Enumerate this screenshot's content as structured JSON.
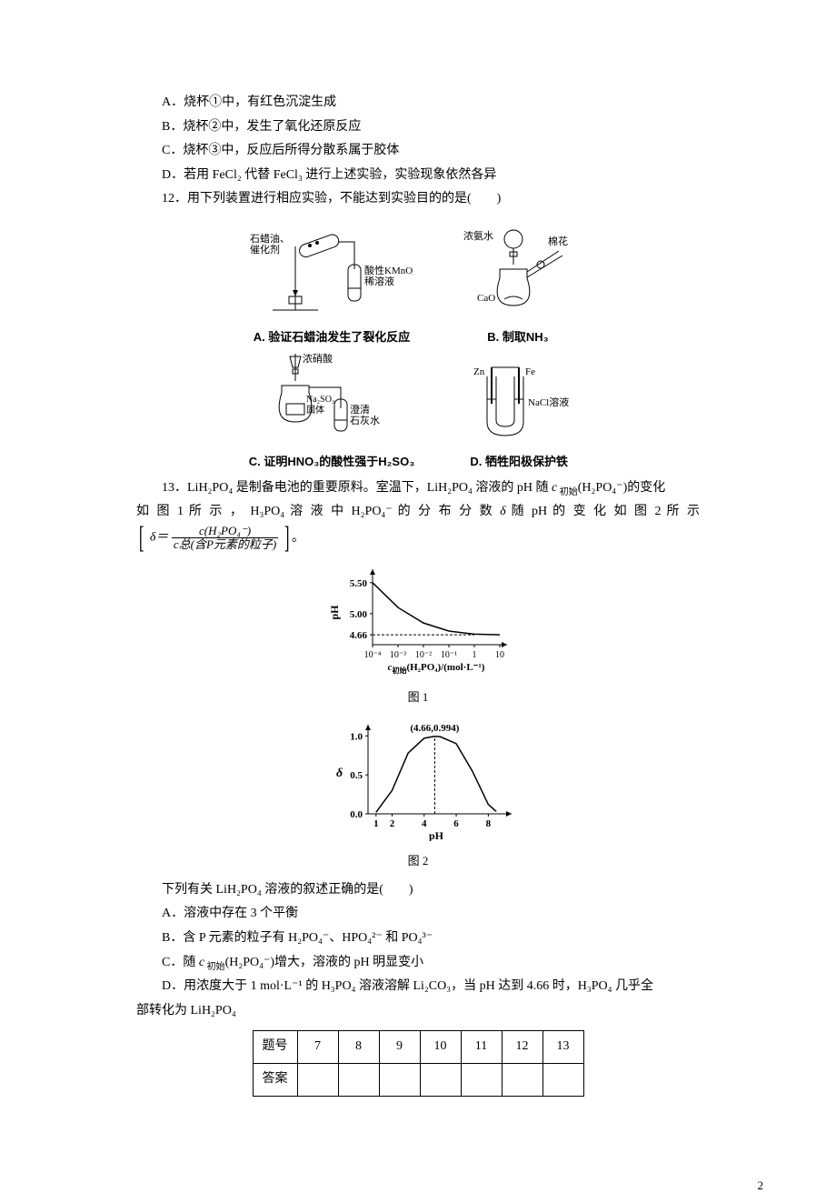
{
  "options_q11": {
    "A": "A．烧杯①中，有红色沉淀生成",
    "B": "B．烧杯②中，发生了氧化还原反应",
    "C": "C．烧杯③中，反应后所得分散系属于胶体",
    "D": "D．若用 FeCl₂ 代替 FeCl₃ 进行上述实验，实验现象依然各异"
  },
  "q12": {
    "stem": "12．用下列装置进行相应实验，不能达到实验目的的是(　　)",
    "devices": {
      "A": {
        "labels": [
          "石蜡油、",
          "催化剂",
          "酸性KMnO₄",
          "稀溶液"
        ],
        "caption": "A. 验证石蜡油发生了裂化反应"
      },
      "B": {
        "labels": [
          "浓氨水",
          "棉花",
          "CaO"
        ],
        "caption": "B. 制取NH₃"
      },
      "C": {
        "labels": [
          "浓硝酸",
          "Na₂SO₃",
          "固体",
          "澄清",
          "石灰水"
        ],
        "caption": "C. 证明HNO₃的酸性强于H₂SO₃"
      },
      "D": {
        "labels": [
          "Zn",
          "Fe",
          "NaCl溶液"
        ],
        "caption": "D. 牺牲阳极保护铁"
      }
    }
  },
  "q13": {
    "stem1": "13．LiH₂PO₄ 是制备电池的重要原料。室温下，LiH₂PO₄ 溶液的 pH 随 ",
    "stem1_c": "c",
    "stem1_sub": " 初始",
    "stem1_tail": "(H₂PO₄⁻)的变化",
    "stem2": "如 图 1 所 示 ， H₃PO₄ 溶 液 中 H₂PO₄⁻ 的 分 布 分 数 ",
    "stem2_delta": "δ",
    "stem2_mid": " 随 pH 的 变 化 如 图 2 所 示",
    "frac_num": "c(H₂PO₄⁻)",
    "frac_den": "c总(含P元素的粒子)",
    "delta_eq": "δ＝",
    "chart1": {
      "type": "line",
      "title": "图 1",
      "ylabel": "pH",
      "xlabel_a": "c",
      "xlabel_b": "初始",
      "xlabel_c": "(H₂PO₄)/(mol·L⁻¹)",
      "yvals": [
        "5.50",
        "5.00",
        "4.66"
      ],
      "xvals": [
        "10⁻⁴",
        "10⁻³",
        "10⁻²",
        "10⁻¹",
        "1",
        "10"
      ],
      "line_color": "#000000",
      "bg": "#ffffff",
      "points_x": [
        0,
        1,
        2,
        3,
        4,
        5
      ],
      "points_y": [
        5.5,
        5.1,
        4.85,
        4.72,
        4.67,
        4.66
      ]
    },
    "chart2": {
      "type": "line",
      "title": "图 2",
      "ylabel": "δ",
      "xlabel": "pH",
      "yvals": [
        "1.0",
        "0.5",
        "0.0"
      ],
      "xvals": [
        "1",
        "2",
        "4",
        "6",
        "8"
      ],
      "peak_label": "(4.66,0.994)",
      "peak_x": 4.66,
      "line_color": "#000000",
      "bg": "#ffffff",
      "points": [
        [
          1,
          0.02
        ],
        [
          2,
          0.3
        ],
        [
          3,
          0.78
        ],
        [
          4,
          0.97
        ],
        [
          4.66,
          0.994
        ],
        [
          5,
          0.99
        ],
        [
          6,
          0.9
        ],
        [
          7,
          0.55
        ],
        [
          8,
          0.12
        ],
        [
          8.5,
          0.03
        ]
      ]
    },
    "sub_stem": "下列有关 LiH₂PO₄ 溶液的叙述正确的是(　　)",
    "A": "A．溶液中存在 3 个平衡",
    "B": "B．含 P 元素的粒子有 H₂PO₄⁻、HPO₄²⁻ 和 PO₄³⁻",
    "C_pre": "C．随 ",
    "C_c": "c",
    "C_sub": " 初始",
    "C_tail": "(H₂PO₄⁻)增大，溶液的 pH 明显变小",
    "D1": "D．用浓度大于 1 mol·L⁻¹ 的 H₃PO₄ 溶液溶解 Li₂CO₃，当 pH 达到 4.66 时，H₃PO₄ 几乎全",
    "D2": "部转化为 LiH₂PO₄"
  },
  "answer_table": {
    "headers": [
      "题号",
      "7",
      "8",
      "9",
      "10",
      "11",
      "12",
      "13"
    ],
    "row2": [
      "答案",
      "",
      "",
      "",
      "",
      "",
      "",
      ""
    ]
  },
  "page_number": "2"
}
